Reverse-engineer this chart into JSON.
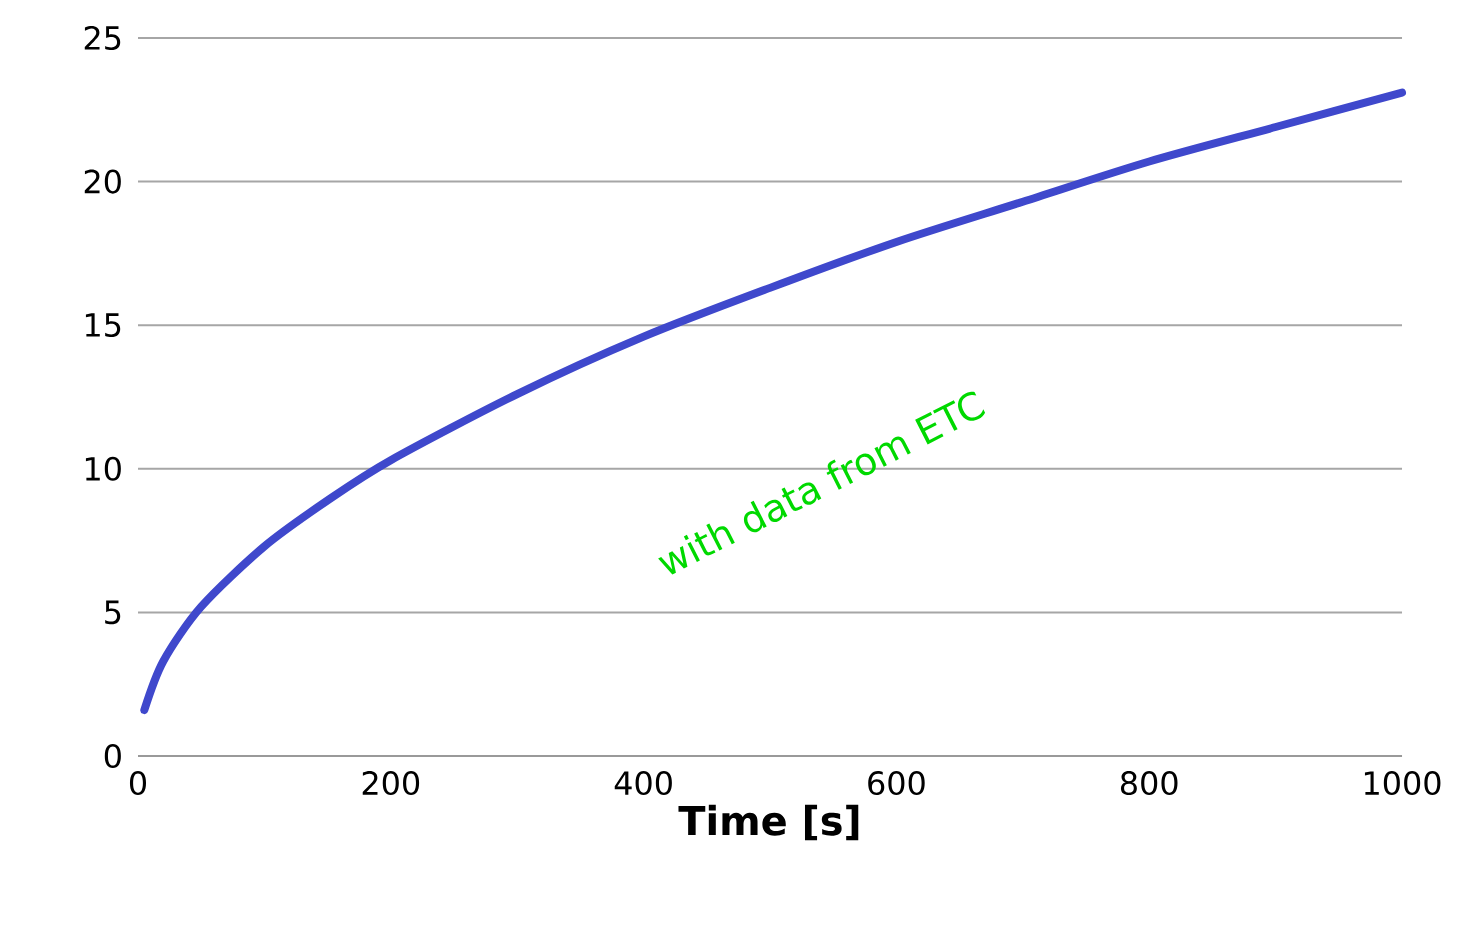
{
  "chart_data": {
    "type": "line",
    "xlabel": "Time [s]",
    "x": [
      5,
      20,
      50,
      100,
      150,
      200,
      300,
      400,
      500,
      600,
      700,
      800,
      900,
      1000
    ],
    "series": [
      {
        "color": "#3f48cc",
        "values": [
          1.6,
          3.3,
          5.2,
          7.3,
          8.9,
          10.3,
          12.6,
          14.6,
          16.3,
          17.9,
          19.3,
          20.7,
          21.9,
          23.1
        ]
      }
    ],
    "xlim": [
      0,
      1000
    ],
    "xticks": [
      0,
      200,
      400,
      600,
      800,
      1000
    ],
    "ylim": [
      0,
      25
    ],
    "yticks": [
      0,
      5,
      10,
      15,
      20,
      25
    ],
    "grid": "y",
    "marker": "none",
    "line_style": "solid",
    "annotations": [
      "with data from ETC"
    ]
  }
}
